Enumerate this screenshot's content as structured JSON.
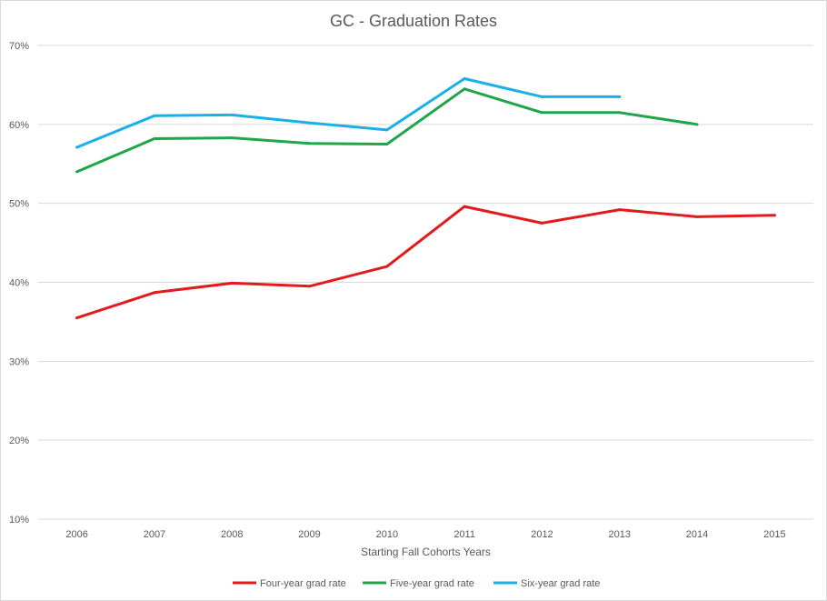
{
  "chart_data": {
    "type": "line",
    "title": "GC - Graduation Rates",
    "xlabel": "Starting Fall Cohorts Years",
    "ylabel": "",
    "categories": [
      "2006",
      "2007",
      "2008",
      "2009",
      "2010",
      "2011",
      "2012",
      "2013",
      "2014",
      "2015"
    ],
    "ylim": [
      0.1,
      0.7
    ],
    "yticks": [
      0.1,
      0.2,
      0.3,
      0.4,
      0.5,
      0.6,
      0.7
    ],
    "ytick_labels": [
      "10%",
      "20%",
      "30%",
      "40%",
      "50%",
      "60%",
      "70%"
    ],
    "grid": true,
    "legend_position": "bottom",
    "series": [
      {
        "name": "Four-year grad rate",
        "color": "#e31a1c",
        "values": [
          0.355,
          0.387,
          0.399,
          0.395,
          0.42,
          0.496,
          0.475,
          0.492,
          0.483,
          0.485
        ]
      },
      {
        "name": "Five-year grad rate",
        "color": "#1fa64a",
        "values": [
          0.54,
          0.582,
          0.583,
          0.576,
          0.575,
          0.645,
          0.615,
          0.615,
          0.6,
          null
        ]
      },
      {
        "name": "Six-year grad rate",
        "color": "#19b0e8",
        "values": [
          0.571,
          0.611,
          0.612,
          0.602,
          0.593,
          0.658,
          0.635,
          0.635,
          null,
          null
        ]
      }
    ]
  }
}
